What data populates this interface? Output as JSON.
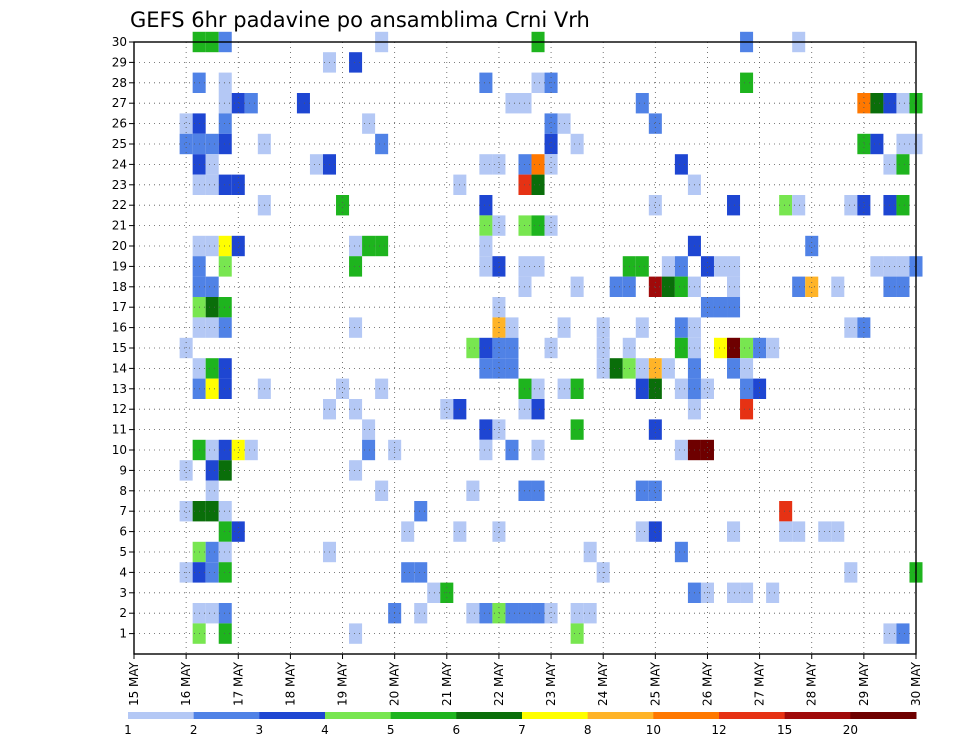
{
  "chart_data": {
    "type": "heatmap",
    "title": "GEFS 6hr padavine po ansamblima Crni Vrh",
    "x_tick_labels": [
      "15 MAY",
      "16 MAY",
      "17 MAY",
      "18 MAY",
      "19 MAY",
      "20 MAY",
      "21 MAY",
      "22 MAY",
      "23 MAY",
      "24 MAY",
      "25 MAY",
      "26 MAY",
      "27 MAY",
      "28 MAY",
      "29 MAY",
      "30 MAY"
    ],
    "y_tick_labels": [
      "1",
      "2",
      "3",
      "4",
      "5",
      "6",
      "7",
      "8",
      "9",
      "10",
      "11",
      "12",
      "13",
      "14",
      "15",
      "16",
      "17",
      "18",
      "19",
      "20",
      "21",
      "22",
      "23",
      "24",
      "25",
      "26",
      "27",
      "28",
      "29",
      "30"
    ],
    "x_range_days": [
      15,
      30
    ],
    "y_range": [
      0,
      30
    ],
    "step_hours": 6,
    "grid": "dotted",
    "legend": {
      "placement": "bottom",
      "thresholds": [
        "1",
        "2",
        "3",
        "4",
        "5",
        "6",
        "7",
        "8",
        "10",
        "12",
        "15",
        "20"
      ],
      "colors": [
        "#b4c8f5",
        "#5082e6",
        "#1e46d2",
        "#78e650",
        "#1eb41e",
        "#0a6e0a",
        "#ffff00",
        "#ffb428",
        "#ff7800",
        "#e63214",
        "#a00a0a",
        "#6e0000"
      ]
    },
    "cells": [
      [
        30,
        16.25,
        5
      ],
      [
        30,
        16.5,
        5
      ],
      [
        30,
        16.75,
        2
      ],
      [
        30,
        19.75,
        1
      ],
      [
        30,
        22.75,
        5
      ],
      [
        30,
        26.75,
        2
      ],
      [
        30,
        27.75,
        1
      ],
      [
        29,
        18.75,
        1
      ],
      [
        29,
        19.25,
        3
      ],
      [
        28,
        16.25,
        2
      ],
      [
        28,
        16.75,
        1
      ],
      [
        28,
        21.75,
        2
      ],
      [
        28,
        22.75,
        1
      ],
      [
        28,
        23.0,
        2
      ],
      [
        28,
        26.75,
        5
      ],
      [
        27,
        16.75,
        1
      ],
      [
        27,
        17.0,
        3
      ],
      [
        27,
        17.25,
        2
      ],
      [
        27,
        18.25,
        3
      ],
      [
        27,
        22.25,
        1
      ],
      [
        27,
        22.5,
        1
      ],
      [
        27,
        24.75,
        2
      ],
      [
        27,
        29.0,
        9
      ],
      [
        27,
        29.25,
        6
      ],
      [
        27,
        29.5,
        3
      ],
      [
        27,
        29.75,
        1
      ],
      [
        27,
        30.0,
        5
      ],
      [
        26,
        16.0,
        1
      ],
      [
        26,
        16.25,
        3
      ],
      [
        26,
        16.75,
        2
      ],
      [
        26,
        19.5,
        1
      ],
      [
        26,
        23.0,
        2
      ],
      [
        26,
        23.25,
        1
      ],
      [
        26,
        25.0,
        2
      ],
      [
        25,
        16.0,
        2
      ],
      [
        25,
        16.25,
        2
      ],
      [
        25,
        16.5,
        2
      ],
      [
        25,
        16.75,
        3
      ],
      [
        25,
        17.5,
        1
      ],
      [
        25,
        19.75,
        2
      ],
      [
        25,
        23.0,
        3
      ],
      [
        25,
        23.5,
        1
      ],
      [
        25,
        29.0,
        5
      ],
      [
        25,
        29.25,
        3
      ],
      [
        25,
        29.75,
        1
      ],
      [
        25,
        30.0,
        1
      ],
      [
        24,
        16.25,
        3
      ],
      [
        24,
        16.5,
        1
      ],
      [
        24,
        18.5,
        1
      ],
      [
        24,
        18.75,
        3
      ],
      [
        24,
        21.75,
        1
      ],
      [
        24,
        22.0,
        1
      ],
      [
        24,
        22.5,
        2
      ],
      [
        24,
        22.75,
        9
      ],
      [
        24,
        23.0,
        1
      ],
      [
        24,
        25.5,
        3
      ],
      [
        24,
        29.5,
        1
      ],
      [
        24,
        29.75,
        5
      ],
      [
        23,
        16.25,
        1
      ],
      [
        23,
        16.5,
        1
      ],
      [
        23,
        16.75,
        3
      ],
      [
        23,
        17.0,
        3
      ],
      [
        23,
        21.25,
        1
      ],
      [
        23,
        22.5,
        10
      ],
      [
        23,
        22.75,
        6
      ],
      [
        23,
        25.75,
        1
      ],
      [
        22,
        17.5,
        1
      ],
      [
        22,
        19.0,
        5
      ],
      [
        22,
        21.75,
        3
      ],
      [
        22,
        25.0,
        1
      ],
      [
        22,
        26.5,
        3
      ],
      [
        22,
        27.5,
        4
      ],
      [
        22,
        27.75,
        1
      ],
      [
        22,
        28.75,
        1
      ],
      [
        22,
        29.0,
        3
      ],
      [
        22,
        29.5,
        3
      ],
      [
        22,
        29.75,
        5
      ],
      [
        21,
        21.75,
        4
      ],
      [
        21,
        22.0,
        1
      ],
      [
        21,
        22.5,
        4
      ],
      [
        21,
        22.75,
        5
      ],
      [
        21,
        23.0,
        1
      ],
      [
        20,
        16.25,
        1
      ],
      [
        20,
        16.5,
        1
      ],
      [
        20,
        16.75,
        7
      ],
      [
        20,
        17.0,
        3
      ],
      [
        20,
        19.25,
        1
      ],
      [
        20,
        19.5,
        5
      ],
      [
        20,
        19.75,
        5
      ],
      [
        20,
        21.75,
        1
      ],
      [
        20,
        25.75,
        3
      ],
      [
        20,
        28.0,
        2
      ],
      [
        19,
        16.25,
        2
      ],
      [
        19,
        16.75,
        4
      ],
      [
        19,
        19.25,
        5
      ],
      [
        19,
        21.75,
        1
      ],
      [
        19,
        22.0,
        3
      ],
      [
        19,
        22.5,
        1
      ],
      [
        19,
        22.75,
        1
      ],
      [
        19,
        24.5,
        5
      ],
      [
        19,
        24.75,
        5
      ],
      [
        19,
        25.25,
        1
      ],
      [
        19,
        25.5,
        2
      ],
      [
        19,
        26.0,
        3
      ],
      [
        19,
        26.25,
        1
      ],
      [
        19,
        26.5,
        1
      ],
      [
        19,
        29.25,
        1
      ],
      [
        19,
        29.5,
        1
      ],
      [
        19,
        29.75,
        1
      ],
      [
        19,
        30.0,
        2
      ],
      [
        18,
        16.25,
        2
      ],
      [
        18,
        16.5,
        2
      ],
      [
        18,
        22.5,
        1
      ],
      [
        18,
        23.5,
        1
      ],
      [
        18,
        24.25,
        2
      ],
      [
        18,
        24.5,
        2
      ],
      [
        18,
        25.0,
        11
      ],
      [
        18,
        25.25,
        6
      ],
      [
        18,
        25.5,
        5
      ],
      [
        18,
        25.75,
        1
      ],
      [
        18,
        26.5,
        1
      ],
      [
        18,
        27.75,
        2
      ],
      [
        18,
        28.0,
        8
      ],
      [
        18,
        28.5,
        1
      ],
      [
        18,
        29.5,
        2
      ],
      [
        18,
        29.75,
        2
      ],
      [
        17,
        16.25,
        4
      ],
      [
        17,
        16.5,
        6
      ],
      [
        17,
        16.75,
        5
      ],
      [
        17,
        22.0,
        1
      ],
      [
        17,
        26.0,
        2
      ],
      [
        17,
        26.25,
        2
      ],
      [
        17,
        26.5,
        2
      ],
      [
        16,
        16.25,
        1
      ],
      [
        16,
        16.5,
        1
      ],
      [
        16,
        16.75,
        2
      ],
      [
        16,
        19.25,
        1
      ],
      [
        16,
        22.0,
        8
      ],
      [
        16,
        22.25,
        1
      ],
      [
        16,
        23.25,
        1
      ],
      [
        16,
        24.0,
        1
      ],
      [
        16,
        24.75,
        1
      ],
      [
        16,
        25.5,
        2
      ],
      [
        16,
        25.75,
        1
      ],
      [
        16,
        28.75,
        1
      ],
      [
        16,
        29.0,
        2
      ],
      [
        15,
        16.0,
        1
      ],
      [
        15,
        21.5,
        4
      ],
      [
        15,
        21.75,
        3
      ],
      [
        15,
        22.0,
        2
      ],
      [
        15,
        22.25,
        2
      ],
      [
        15,
        23.0,
        1
      ],
      [
        15,
        24.0,
        1
      ],
      [
        15,
        24.5,
        1
      ],
      [
        15,
        25.5,
        5
      ],
      [
        15,
        25.75,
        1
      ],
      [
        15,
        26.25,
        7
      ],
      [
        15,
        26.5,
        12
      ],
      [
        15,
        26.75,
        4
      ],
      [
        15,
        27.0,
        2
      ],
      [
        15,
        27.25,
        1
      ],
      [
        14,
        16.25,
        1
      ],
      [
        14,
        16.5,
        5
      ],
      [
        14,
        16.75,
        3
      ],
      [
        14,
        21.75,
        2
      ],
      [
        14,
        22.0,
        2
      ],
      [
        14,
        22.25,
        2
      ],
      [
        14,
        24.0,
        1
      ],
      [
        14,
        24.25,
        6
      ],
      [
        14,
        24.5,
        4
      ],
      [
        14,
        24.75,
        1
      ],
      [
        14,
        25.0,
        8
      ],
      [
        14,
        25.25,
        1
      ],
      [
        14,
        25.75,
        2
      ],
      [
        14,
        26.5,
        2
      ],
      [
        14,
        26.75,
        1
      ],
      [
        13,
        16.25,
        2
      ],
      [
        13,
        16.5,
        7
      ],
      [
        13,
        16.75,
        3
      ],
      [
        13,
        17.5,
        1
      ],
      [
        13,
        19.0,
        1
      ],
      [
        13,
        19.75,
        1
      ],
      [
        13,
        22.5,
        5
      ],
      [
        13,
        22.75,
        1
      ],
      [
        13,
        23.25,
        1
      ],
      [
        13,
        23.5,
        5
      ],
      [
        13,
        24.75,
        3
      ],
      [
        13,
        25.0,
        6
      ],
      [
        13,
        25.5,
        1
      ],
      [
        13,
        25.75,
        2
      ],
      [
        13,
        26.0,
        1
      ],
      [
        13,
        26.75,
        2
      ],
      [
        13,
        27.0,
        3
      ],
      [
        12,
        18.75,
        1
      ],
      [
        12,
        19.25,
        1
      ],
      [
        12,
        21.0,
        1
      ],
      [
        12,
        21.25,
        3
      ],
      [
        12,
        22.5,
        1
      ],
      [
        12,
        22.75,
        3
      ],
      [
        12,
        25.75,
        1
      ],
      [
        12,
        26.75,
        10
      ],
      [
        11,
        19.5,
        1
      ],
      [
        11,
        21.75,
        3
      ],
      [
        11,
        22.0,
        1
      ],
      [
        11,
        23.5,
        5
      ],
      [
        11,
        25.0,
        3
      ],
      [
        10,
        16.25,
        5
      ],
      [
        10,
        16.5,
        1
      ],
      [
        10,
        16.75,
        3
      ],
      [
        10,
        17.0,
        7
      ],
      [
        10,
        17.25,
        1
      ],
      [
        10,
        19.5,
        2
      ],
      [
        10,
        20.0,
        1
      ],
      [
        10,
        21.75,
        1
      ],
      [
        10,
        22.25,
        2
      ],
      [
        10,
        22.75,
        1
      ],
      [
        10,
        25.5,
        1
      ],
      [
        10,
        25.75,
        12
      ],
      [
        10,
        26.0,
        12
      ],
      [
        9,
        16.0,
        1
      ],
      [
        9,
        16.5,
        3
      ],
      [
        9,
        16.75,
        6
      ],
      [
        9,
        19.25,
        1
      ],
      [
        8,
        16.5,
        1
      ],
      [
        8,
        19.75,
        1
      ],
      [
        8,
        21.5,
        1
      ],
      [
        8,
        22.5,
        2
      ],
      [
        8,
        22.75,
        2
      ],
      [
        8,
        24.75,
        2
      ],
      [
        8,
        25.0,
        2
      ],
      [
        7,
        16.0,
        1
      ],
      [
        7,
        16.25,
        6
      ],
      [
        7,
        16.5,
        6
      ],
      [
        7,
        16.75,
        1
      ],
      [
        7,
        20.5,
        2
      ],
      [
        7,
        27.5,
        10
      ],
      [
        6,
        16.75,
        5
      ],
      [
        6,
        17.0,
        3
      ],
      [
        6,
        20.25,
        1
      ],
      [
        6,
        21.25,
        1
      ],
      [
        6,
        22.0,
        1
      ],
      [
        6,
        24.75,
        1
      ],
      [
        6,
        25.0,
        3
      ],
      [
        6,
        26.5,
        1
      ],
      [
        6,
        27.5,
        1
      ],
      [
        6,
        27.75,
        1
      ],
      [
        6,
        28.25,
        1
      ],
      [
        6,
        28.5,
        1
      ],
      [
        5,
        16.25,
        4
      ],
      [
        5,
        16.5,
        2
      ],
      [
        5,
        16.75,
        1
      ],
      [
        5,
        18.75,
        1
      ],
      [
        5,
        23.75,
        1
      ],
      [
        5,
        25.5,
        2
      ],
      [
        4,
        16.0,
        1
      ],
      [
        4,
        16.25,
        3
      ],
      [
        4,
        16.5,
        2
      ],
      [
        4,
        16.75,
        5
      ],
      [
        4,
        20.25,
        2
      ],
      [
        4,
        20.5,
        2
      ],
      [
        4,
        24.0,
        1
      ],
      [
        4,
        28.75,
        1
      ],
      [
        4,
        30.0,
        5
      ],
      [
        3,
        20.75,
        1
      ],
      [
        3,
        21.0,
        5
      ],
      [
        3,
        25.75,
        2
      ],
      [
        3,
        26.0,
        1
      ],
      [
        3,
        26.5,
        1
      ],
      [
        3,
        26.75,
        1
      ],
      [
        3,
        27.25,
        1
      ],
      [
        2,
        16.25,
        1
      ],
      [
        2,
        16.5,
        1
      ],
      [
        2,
        16.75,
        2
      ],
      [
        2,
        20.0,
        2
      ],
      [
        2,
        20.5,
        1
      ],
      [
        2,
        21.5,
        1
      ],
      [
        2,
        21.75,
        2
      ],
      [
        2,
        22.0,
        4
      ],
      [
        2,
        22.25,
        2
      ],
      [
        2,
        22.5,
        2
      ],
      [
        2,
        22.75,
        2
      ],
      [
        2,
        23.0,
        1
      ],
      [
        2,
        23.5,
        1
      ],
      [
        2,
        23.75,
        1
      ],
      [
        1,
        16.25,
        4
      ],
      [
        1,
        16.75,
        5
      ],
      [
        1,
        19.25,
        1
      ],
      [
        1,
        23.5,
        4
      ],
      [
        1,
        29.5,
        1
      ],
      [
        1,
        29.75,
        2
      ]
    ]
  }
}
